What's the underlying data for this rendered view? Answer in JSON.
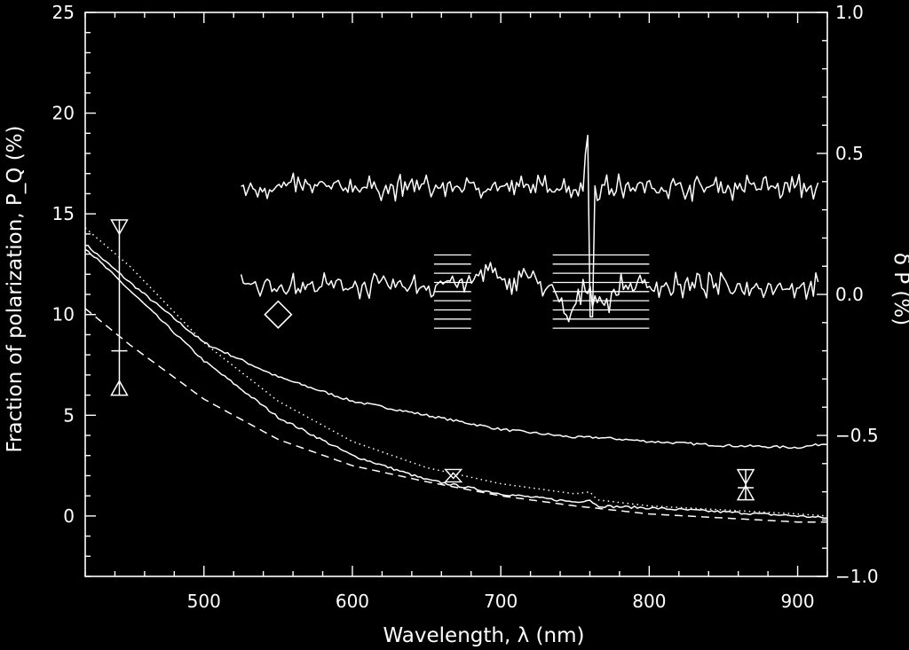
{
  "chart_data": {
    "type": "line",
    "xlabel": "Wavelength, λ (nm)",
    "ylabel_left": "Fraction of polarization, P_Q (%)",
    "ylabel_right": "δ P (%)",
    "xlim": [
      420,
      920
    ],
    "ylim_left": [
      -3,
      25
    ],
    "ylim_right": [
      -1.0,
      1.0
    ],
    "x_ticks": [
      "500",
      "600",
      "700",
      "800",
      "900"
    ],
    "y_ticks_left": [
      "0",
      "5",
      "10",
      "15",
      "20",
      "25"
    ],
    "y_ticks_right": [
      "−1.0",
      "−0.5",
      "0.0",
      "0.5",
      "1.0"
    ],
    "background": "#000000",
    "line_color": "#ffffff",
    "grid": false,
    "series": [
      {
        "style": "solid",
        "axis": "left",
        "x": [
          420,
          450,
          500,
          550,
          600,
          650,
          700,
          750,
          765,
          800,
          850,
          900,
          920
        ],
        "y": [
          13.5,
          11.6,
          8.6,
          6.9,
          5.7,
          5.0,
          4.3,
          3.9,
          3.9,
          3.7,
          3.5,
          3.4,
          3.6
        ]
      },
      {
        "style": "solid",
        "axis": "left",
        "x": [
          420,
          450,
          500,
          550,
          600,
          650,
          700,
          750,
          760,
          765,
          800,
          850,
          900,
          920
        ],
        "y": [
          13.3,
          11.2,
          7.7,
          4.9,
          3.0,
          1.8,
          1.1,
          0.7,
          0.8,
          0.5,
          0.4,
          0.2,
          0.0,
          -0.1
        ]
      },
      {
        "style": "dotted",
        "axis": "left",
        "x": [
          420,
          450,
          500,
          550,
          600,
          650,
          700,
          750,
          760,
          765,
          800,
          850,
          900,
          920
        ],
        "y": [
          14.3,
          12.4,
          8.6,
          5.7,
          3.7,
          2.4,
          1.6,
          1.1,
          1.2,
          0.8,
          0.5,
          0.3,
          0.1,
          0.0
        ]
      },
      {
        "style": "dashed",
        "axis": "left",
        "x": [
          420,
          450,
          500,
          550,
          600,
          650,
          700,
          750,
          800,
          850,
          900,
          920
        ],
        "y": [
          10.3,
          8.5,
          5.8,
          3.8,
          2.5,
          1.7,
          1.0,
          0.5,
          0.1,
          -0.1,
          -0.3,
          -0.3
        ]
      },
      {
        "style": "solid",
        "axis": "right",
        "noise": "upper",
        "x_start": 525,
        "x_end": 915,
        "baseline": 0.38,
        "amplitude": 0.05,
        "spike_x": 760,
        "spike_peak": 0.62,
        "spike_min": -0.08
      },
      {
        "style": "solid",
        "axis": "right",
        "noise": "lower",
        "x_start": 525,
        "x_end": 915,
        "baseline": 0.03,
        "amplitude": 0.05,
        "features_x": [
          665,
          690,
          715,
          745,
          760,
          770
        ],
        "features_y": [
          0.05,
          0.1,
          0.08,
          -0.09,
          0.02,
          -0.03
        ]
      }
    ],
    "error_bars": [
      {
        "x": 443,
        "y": 8.2,
        "low": 6.0,
        "high": 14.7,
        "axis": "left"
      },
      {
        "x": 865,
        "y": 1.4,
        "low": 0.8,
        "high": 2.3,
        "axis": "left"
      }
    ],
    "markers": [
      {
        "shape": "diamond",
        "x": 550,
        "y": 10.0,
        "axis": "left"
      },
      {
        "shape": "triangle-pair",
        "x": 668,
        "y": 2.0,
        "axis": "left"
      }
    ],
    "reference_band_groups": [
      {
        "x_start": 655,
        "x_end": 680,
        "y_low": -0.12,
        "y_high": 0.14,
        "axis": "right"
      },
      {
        "x_start": 735,
        "x_end": 800,
        "y_low": -0.12,
        "y_high": 0.14,
        "axis": "right"
      }
    ]
  }
}
